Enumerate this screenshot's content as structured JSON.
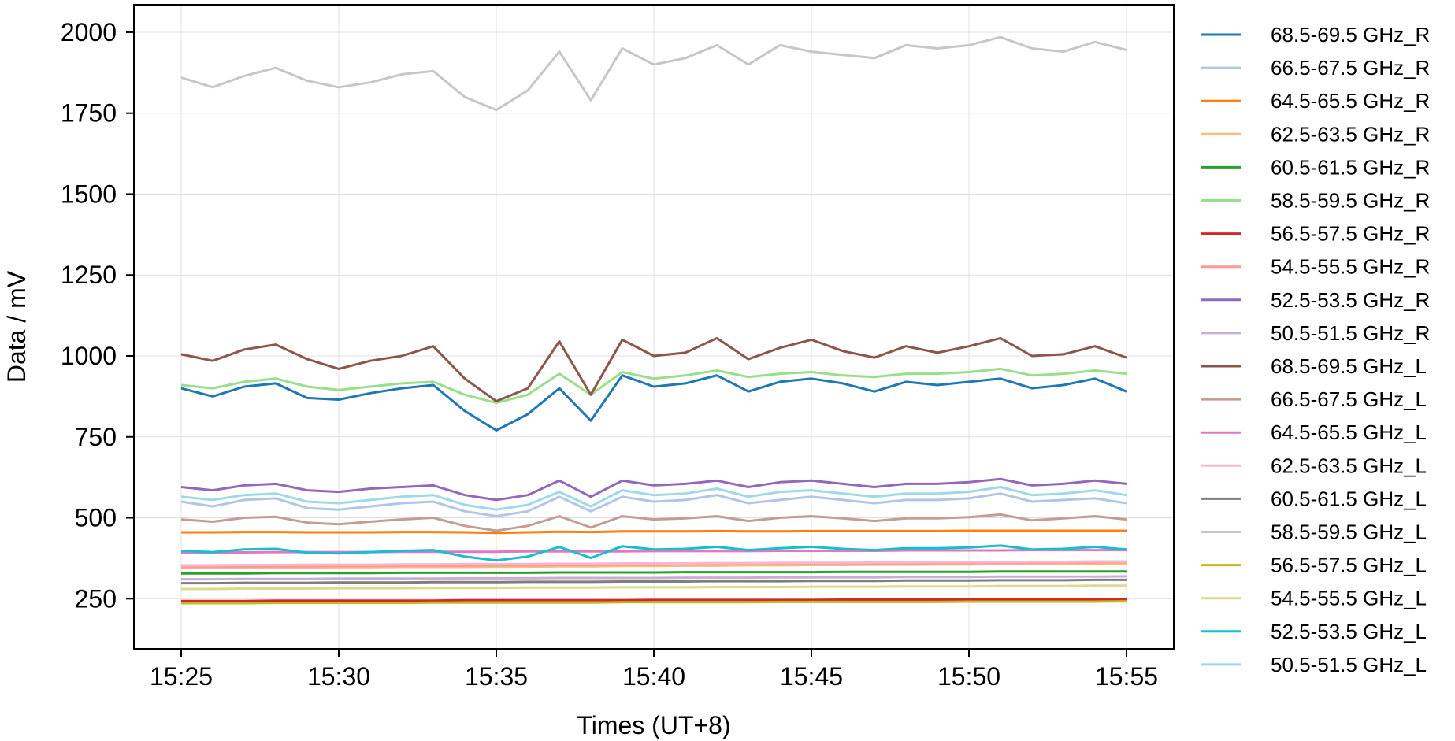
{
  "chart_data": {
    "type": "line",
    "title": "",
    "xlabel": "Times (UT+8)",
    "ylabel": "Data / mV",
    "xlim": [
      "15:23.5",
      "15:56.5"
    ],
    "ylim": [
      95,
      2085
    ],
    "grid": true,
    "legend_position": "right-outside",
    "x_ticks": [
      "15:25",
      "15:30",
      "15:35",
      "15:40",
      "15:45",
      "15:50",
      "15:55"
    ],
    "y_ticks": [
      250,
      500,
      750,
      1000,
      1250,
      1500,
      1750,
      2000
    ],
    "x": [
      "15:25",
      "15:26",
      "15:27",
      "15:28",
      "15:29",
      "15:30",
      "15:31",
      "15:32",
      "15:33",
      "15:34",
      "15:35",
      "15:36",
      "15:37",
      "15:38",
      "15:39",
      "15:40",
      "15:41",
      "15:42",
      "15:43",
      "15:44",
      "15:45",
      "15:46",
      "15:47",
      "15:48",
      "15:49",
      "15:50",
      "15:51",
      "15:52",
      "15:53",
      "15:54",
      "15:55"
    ],
    "series": [
      {
        "name": "68.5-69.5 GHz_R",
        "color": "#1f77b4",
        "values": [
          900,
          875,
          905,
          915,
          870,
          865,
          885,
          900,
          910,
          830,
          770,
          820,
          900,
          800,
          940,
          905,
          915,
          940,
          890,
          920,
          930,
          915,
          890,
          920,
          910,
          920,
          930,
          900,
          910,
          930,
          890
        ]
      },
      {
        "name": "66.5-67.5 GHz_R",
        "color": "#aec7e8",
        "values": [
          550,
          535,
          555,
          560,
          530,
          525,
          535,
          545,
          550,
          520,
          505,
          520,
          565,
          520,
          565,
          550,
          555,
          570,
          545,
          555,
          565,
          555,
          545,
          555,
          555,
          560,
          575,
          550,
          555,
          560,
          545
        ]
      },
      {
        "name": "64.5-65.5 GHz_R",
        "color": "#ff7f0e",
        "values": [
          455,
          455,
          456,
          456,
          455,
          455,
          455,
          456,
          456,
          455,
          453,
          455,
          457,
          456,
          458,
          458,
          458,
          459,
          458,
          458,
          459,
          459,
          459,
          459,
          459,
          460,
          460,
          460,
          460,
          460,
          460
        ]
      },
      {
        "name": "62.5-63.5 GHz_R",
        "color": "#ffbb78",
        "values": [
          344,
          345,
          345,
          346,
          346,
          347,
          347,
          348,
          348,
          348,
          349,
          349,
          350,
          350,
          351,
          351,
          352,
          352,
          353,
          353,
          354,
          354,
          355,
          355,
          356,
          356,
          357,
          357,
          358,
          358,
          359
        ]
      },
      {
        "name": "60.5-61.5 GHz_R",
        "color": "#2ca02c",
        "values": [
          328,
          328,
          328,
          329,
          329,
          329,
          329,
          330,
          330,
          330,
          330,
          330,
          331,
          331,
          331,
          331,
          332,
          332,
          332,
          332,
          332,
          333,
          333,
          333,
          333,
          333,
          334,
          334,
          334,
          334,
          334
        ]
      },
      {
        "name": "58.5-59.5 GHz_R",
        "color": "#98df8a",
        "values": [
          910,
          900,
          920,
          930,
          905,
          895,
          905,
          915,
          920,
          880,
          855,
          880,
          945,
          880,
          950,
          930,
          940,
          955,
          935,
          945,
          950,
          940,
          935,
          945,
          945,
          950,
          960,
          940,
          945,
          955,
          945
        ]
      },
      {
        "name": "56.5-57.5 GHz_R",
        "color": "#d62728",
        "values": [
          243,
          243,
          243,
          244,
          244,
          244,
          244,
          244,
          244,
          245,
          245,
          245,
          245,
          245,
          245,
          246,
          246,
          246,
          246,
          246,
          246,
          247,
          247,
          247,
          247,
          247,
          247,
          248,
          248,
          248,
          248
        ]
      },
      {
        "name": "54.5-55.5 GHz_R",
        "color": "#ff9896",
        "values": [
          348,
          349,
          349,
          350,
          350,
          351,
          351,
          352,
          352,
          352,
          353,
          353,
          354,
          354,
          355,
          355,
          356,
          356,
          357,
          357,
          358,
          358,
          359,
          359,
          360,
          360,
          361,
          361,
          362,
          362,
          363
        ]
      },
      {
        "name": "52.5-53.5 GHz_R",
        "color": "#9467bd",
        "values": [
          595,
          585,
          600,
          605,
          585,
          580,
          590,
          595,
          600,
          570,
          555,
          570,
          615,
          565,
          615,
          600,
          605,
          615,
          595,
          610,
          615,
          605,
          595,
          605,
          605,
          610,
          620,
          600,
          605,
          615,
          605
        ]
      },
      {
        "name": "50.5-51.5 GHz_R",
        "color": "#c5b0d5",
        "values": [
          310,
          310,
          311,
          311,
          311,
          312,
          312,
          312,
          312,
          313,
          313,
          313,
          314,
          314,
          314,
          314,
          315,
          315,
          315,
          316,
          316,
          316,
          316,
          317,
          317,
          317,
          318,
          318,
          318,
          318,
          319
        ]
      },
      {
        "name": "68.5-69.5 GHz_L",
        "color": "#8c564b",
        "values": [
          1005,
          985,
          1020,
          1035,
          990,
          960,
          985,
          1000,
          1030,
          930,
          860,
          900,
          1045,
          880,
          1050,
          1000,
          1010,
          1055,
          990,
          1025,
          1050,
          1015,
          995,
          1030,
          1010,
          1030,
          1055,
          1000,
          1005,
          1030,
          995
        ]
      },
      {
        "name": "66.5-67.5 GHz_L",
        "color": "#c49c94",
        "values": [
          495,
          488,
          500,
          503,
          485,
          480,
          488,
          495,
          500,
          475,
          460,
          475,
          505,
          470,
          505,
          495,
          498,
          505,
          490,
          500,
          505,
          498,
          490,
          498,
          498,
          502,
          510,
          492,
          498,
          505,
          495
        ]
      },
      {
        "name": "64.5-65.5 GHz_L",
        "color": "#e377c2",
        "values": [
          393,
          393,
          393,
          394,
          394,
          394,
          394,
          395,
          395,
          395,
          395,
          396,
          396,
          396,
          396,
          397,
          397,
          397,
          397,
          398,
          398,
          398,
          398,
          399,
          399,
          399,
          399,
          400,
          400,
          400,
          400
        ]
      },
      {
        "name": "62.5-63.5 GHz_L",
        "color": "#f7b6d2",
        "values": [
          353,
          353,
          354,
          354,
          355,
          355,
          355,
          356,
          356,
          357,
          357,
          357,
          358,
          358,
          359,
          359,
          359,
          360,
          360,
          361,
          361,
          361,
          362,
          362,
          363,
          363,
          363,
          364,
          364,
          365,
          365
        ]
      },
      {
        "name": "60.5-61.5 GHz_L",
        "color": "#7f7f7f",
        "values": [
          298,
          298,
          299,
          299,
          299,
          300,
          300,
          300,
          301,
          301,
          301,
          302,
          302,
          302,
          303,
          303,
          303,
          304,
          304,
          304,
          305,
          305,
          305,
          306,
          306,
          306,
          307,
          307,
          307,
          308,
          308
        ]
      },
      {
        "name": "58.5-59.5 GHz_L",
        "color": "#c7c7c7",
        "values": [
          1860,
          1830,
          1865,
          1890,
          1850,
          1830,
          1845,
          1870,
          1880,
          1800,
          1760,
          1820,
          1940,
          1790,
          1950,
          1900,
          1920,
          1960,
          1900,
          1960,
          1940,
          1930,
          1920,
          1960,
          1950,
          1960,
          1985,
          1950,
          1940,
          1970,
          1945
        ]
      },
      {
        "name": "56.5-57.5 GHz_L",
        "color": "#bcbd22",
        "values": [
          236,
          236,
          236,
          237,
          237,
          237,
          237,
          237,
          238,
          238,
          238,
          238,
          238,
          238,
          239,
          239,
          239,
          239,
          239,
          240,
          240,
          240,
          240,
          240,
          240,
          241,
          241,
          241,
          241,
          241,
          242
        ]
      },
      {
        "name": "54.5-55.5 GHz_L",
        "color": "#dbdb8d",
        "values": [
          280,
          280,
          281,
          281,
          281,
          282,
          282,
          282,
          283,
          283,
          283,
          284,
          284,
          284,
          285,
          285,
          285,
          286,
          286,
          286,
          287,
          287,
          287,
          288,
          288,
          288,
          289,
          289,
          289,
          290,
          290
        ]
      },
      {
        "name": "52.5-53.5 GHz_L",
        "color": "#17becf",
        "values": [
          398,
          394,
          402,
          404,
          392,
          390,
          394,
          398,
          400,
          380,
          368,
          380,
          410,
          376,
          412,
          402,
          404,
          410,
          400,
          406,
          410,
          404,
          400,
          406,
          406,
          408,
          414,
          402,
          404,
          410,
          402
        ]
      },
      {
        "name": "50.5-51.5 GHz_L",
        "color": "#9edae5",
        "values": [
          565,
          555,
          570,
          575,
          550,
          545,
          555,
          565,
          570,
          540,
          525,
          540,
          580,
          535,
          585,
          570,
          575,
          590,
          565,
          580,
          585,
          575,
          565,
          575,
          575,
          580,
          595,
          570,
          575,
          585,
          570
        ]
      }
    ]
  }
}
